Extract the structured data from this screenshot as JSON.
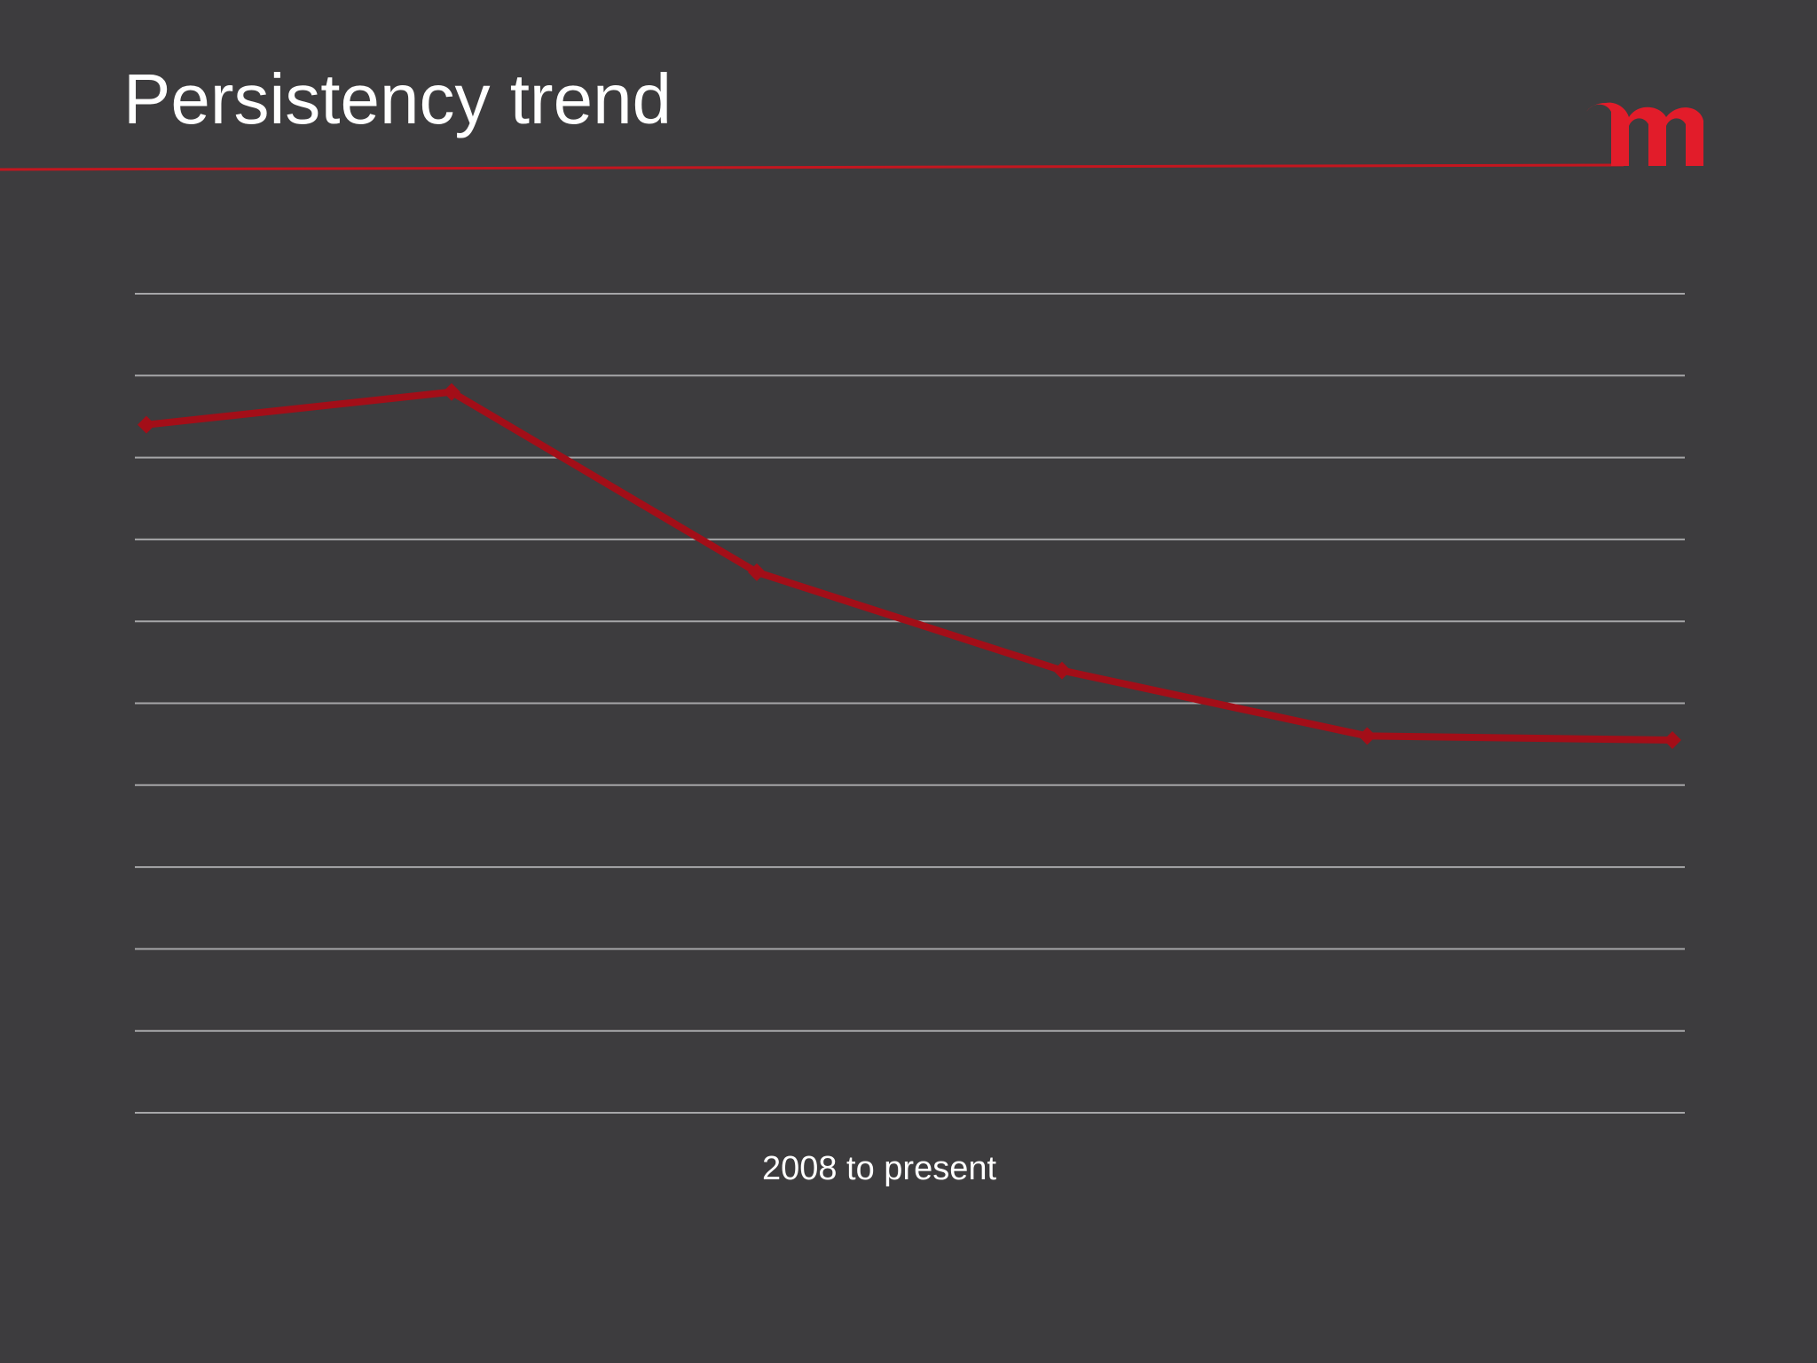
{
  "slide": {
    "title": "Persistency trend",
    "brand_color": "#e21c2a",
    "background_color": "#3d3c3e",
    "logo_icon": "m-logo-icon"
  },
  "chart_data": {
    "type": "line",
    "title": "Persistency trend",
    "xlabel": "2008 to present",
    "ylabel": "",
    "categories": [
      "",
      "",
      "",
      "",
      "",
      ""
    ],
    "series": [
      {
        "values": [
          8.4,
          8.8,
          6.6,
          5.4,
          4.6,
          4.55
        ]
      }
    ],
    "ylim": [
      0,
      10
    ],
    "grid": true,
    "gridline_count": 11,
    "line_color": "#a30e18",
    "grid_color": "#a6a6a8",
    "marker": "diamond",
    "legend": "none"
  }
}
